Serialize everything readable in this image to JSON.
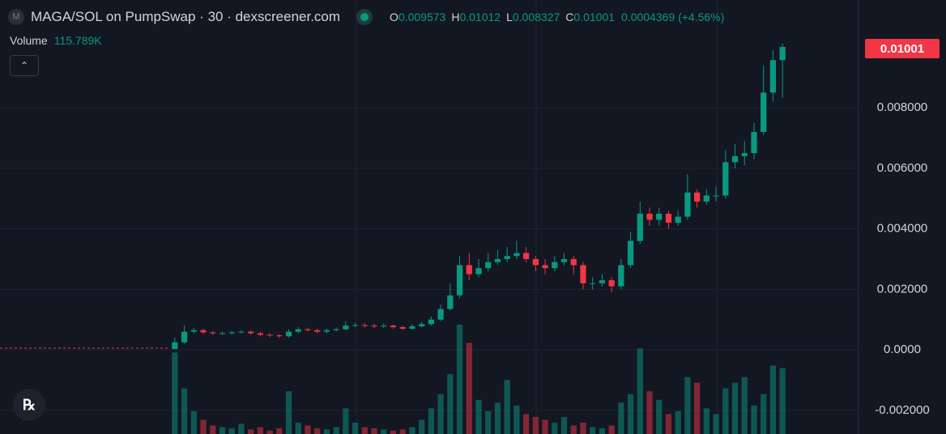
{
  "chart_data": {
    "type": "candlestick",
    "symbol_icon": "M",
    "title": "MAGA/SOL on PumpSwap · 30 · dexscreener.com",
    "ohlc_labels": [
      "O",
      "H",
      "L",
      "C"
    ],
    "change": "0.0004369 (+4.56%)",
    "volume_title": "Volume",
    "volume_label": "115.789K",
    "up_color": "#089981",
    "down_color": "#f23645",
    "ylim": [
      -0.00278,
      0.01156
    ],
    "yticks": [
      {
        "value": -0.002,
        "label": "-0.002000"
      },
      {
        "value": 0,
        "label": "0.0000"
      },
      {
        "value": 0.002,
        "label": "0.002000"
      },
      {
        "value": 0.004,
        "label": "0.004000"
      },
      {
        "value": 0.006,
        "label": "0.006000"
      },
      {
        "value": 0.008,
        "label": "0.008000"
      }
    ],
    "vlim": [
      0,
      270000
    ],
    "grid": true,
    "open": [
      3e-05,
      0.00025,
      0.0006,
      0.00065,
      0.00058,
      0.00055,
      0.00055,
      0.00058,
      0.0006,
      0.00055,
      0.0005,
      0.00048,
      0.00045,
      0.0006,
      0.00068,
      0.00065,
      0.0006,
      0.00065,
      0.00068,
      0.0008,
      0.00082,
      0.0008,
      0.00078,
      0.0008,
      0.00075,
      0.0007,
      0.00078,
      0.00085,
      0.001,
      0.00135,
      0.0018,
      0.0028,
      0.0025,
      0.0027,
      0.0029,
      0.003,
      0.0031,
      0.0032,
      0.003,
      0.0028,
      0.0027,
      0.0029,
      0.003,
      0.0028,
      0.0022,
      0.0022,
      0.0023,
      0.0021,
      0.0028,
      0.0036,
      0.0045,
      0.0043,
      0.0045,
      0.0042,
      0.0044,
      0.0052,
      0.0049,
      0.0051,
      0.0051,
      0.0062,
      0.0064,
      0.0065,
      0.0072,
      0.0085,
      0.009573
    ],
    "high": [
      0.0004,
      0.0008,
      0.00072,
      0.0007,
      0.00062,
      0.0006,
      0.00063,
      0.00066,
      0.00064,
      0.0006,
      0.00055,
      0.00052,
      0.00068,
      0.00075,
      0.00073,
      0.0007,
      0.0007,
      0.00074,
      0.00095,
      0.0009,
      0.00088,
      0.00086,
      0.00088,
      0.00084,
      0.0008,
      0.00085,
      0.00092,
      0.0011,
      0.0015,
      0.0022,
      0.0031,
      0.0032,
      0.003,
      0.0032,
      0.0033,
      0.0034,
      0.0036,
      0.0034,
      0.0031,
      0.003,
      0.0031,
      0.0032,
      0.0031,
      0.0029,
      0.0024,
      0.0025,
      0.0024,
      0.003,
      0.0039,
      0.0049,
      0.0047,
      0.0047,
      0.0046,
      0.0046,
      0.0058,
      0.0053,
      0.0053,
      0.0054,
      0.0066,
      0.0068,
      0.0069,
      0.0075,
      0.0094,
      0.0099,
      0.01012
    ],
    "low": [
      2e-05,
      0.0002,
      0.00055,
      0.00052,
      0.0005,
      0.0005,
      0.0005,
      0.00054,
      0.0005,
      0.00045,
      0.00042,
      0.0004,
      0.0004,
      0.00055,
      0.0006,
      0.00055,
      0.00055,
      0.0006,
      0.00065,
      0.00075,
      0.00074,
      0.00072,
      0.00072,
      0.0007,
      0.00065,
      0.00066,
      0.00074,
      0.0008,
      0.00095,
      0.0013,
      0.0017,
      0.0023,
      0.0024,
      0.0026,
      0.0028,
      0.0029,
      0.003,
      0.0029,
      0.0026,
      0.0025,
      0.0026,
      0.0028,
      0.0025,
      0.002,
      0.002,
      0.0021,
      0.0019,
      0.002,
      0.0027,
      0.0035,
      0.0041,
      0.0041,
      0.004,
      0.0041,
      0.0043,
      0.0047,
      0.0048,
      0.0049,
      0.005,
      0.006,
      0.0061,
      0.0063,
      0.0071,
      0.0082,
      0.008327
    ],
    "close": [
      0.00025,
      0.0006,
      0.00065,
      0.00058,
      0.00055,
      0.00055,
      0.00058,
      0.0006,
      0.00055,
      0.0005,
      0.00048,
      0.00045,
      0.0006,
      0.00068,
      0.00065,
      0.0006,
      0.00065,
      0.00068,
      0.0008,
      0.00082,
      0.0008,
      0.00078,
      0.0008,
      0.00075,
      0.0007,
      0.00078,
      0.00085,
      0.001,
      0.00135,
      0.0018,
      0.0028,
      0.0025,
      0.0027,
      0.0029,
      0.003,
      0.0031,
      0.0032,
      0.003,
      0.0028,
      0.0027,
      0.0029,
      0.003,
      0.0028,
      0.0022,
      0.0022,
      0.0023,
      0.0021,
      0.0028,
      0.0036,
      0.0045,
      0.0043,
      0.0045,
      0.0042,
      0.0044,
      0.0052,
      0.0049,
      0.0051,
      0.0051,
      0.0062,
      0.0064,
      0.0065,
      0.0072,
      0.0085,
      0.009573,
      0.01001
    ],
    "volume": [
      143000,
      80000,
      40000,
      25000,
      15000,
      12000,
      10000,
      18000,
      8000,
      12000,
      6000,
      10000,
      75000,
      20000,
      15000,
      10000,
      8000,
      12000,
      45000,
      20000,
      12000,
      10000,
      8000,
      6000,
      8000,
      12000,
      25000,
      45000,
      70000,
      105000,
      192000,
      160000,
      60000,
      40000,
      55000,
      95000,
      50000,
      35000,
      30000,
      25000,
      20000,
      30000,
      15000,
      20000,
      12000,
      10000,
      15000,
      55000,
      70000,
      150000,
      75000,
      60000,
      35000,
      40000,
      100000,
      90000,
      45000,
      35000,
      80000,
      90000,
      100000,
      50000,
      70000,
      120000,
      115789
    ]
  }
}
